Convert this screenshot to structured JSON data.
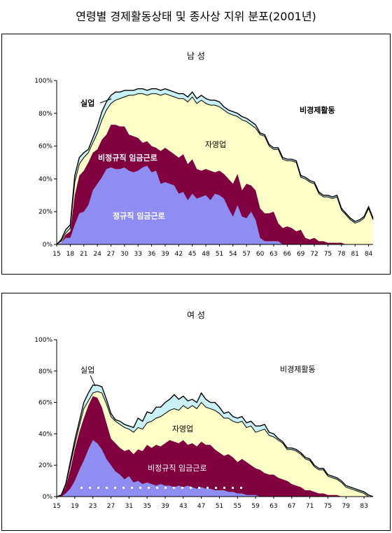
{
  "title": "연령별 경제활동상태 및 종사상 지위 분포(2001년)",
  "colors": {
    "regular": "#8e8ef2",
    "nonregular": "#800040",
    "self": "#ffffc8",
    "unemployed": "#c8f0f5",
    "line": "#000000"
  },
  "chart_data": [
    {
      "type": "area",
      "title": "남 성",
      "ylim": [
        0,
        100
      ],
      "yticks": [
        "0%",
        "20%",
        "40%",
        "60%",
        "80%",
        "100%"
      ],
      "x_tick_labels": [
        "15",
        "18",
        "21",
        "24",
        "27",
        "30",
        "33",
        "36",
        "39",
        "42",
        "45",
        "48",
        "51",
        "54",
        "57",
        "60",
        "63",
        "66",
        "69",
        "72",
        "75",
        "78",
        "81",
        "84"
      ],
      "x": [
        15,
        16,
        17,
        18,
        19,
        20,
        21,
        22,
        23,
        24,
        25,
        26,
        27,
        28,
        29,
        30,
        31,
        32,
        33,
        34,
        35,
        36,
        37,
        38,
        39,
        40,
        41,
        42,
        43,
        44,
        45,
        46,
        47,
        48,
        49,
        50,
        51,
        52,
        53,
        54,
        55,
        56,
        57,
        58,
        59,
        60,
        61,
        62,
        63,
        64,
        65,
        66,
        67,
        68,
        69,
        70,
        71,
        72,
        73,
        74,
        75,
        76,
        77,
        78,
        79,
        80,
        81,
        82,
        83,
        84,
        85
      ],
      "labels": {
        "unemployed": "실업",
        "nonactive": "비경제활동",
        "self": "자영업",
        "nonregular": "비정규직 임금근로",
        "regular": "정규직 임금근로"
      },
      "series": [
        {
          "key": "regular",
          "name": "정규직 임금근로",
          "values": [
            0,
            1,
            4,
            4,
            12,
            19,
            20,
            24,
            33,
            37,
            41,
            46,
            47,
            46,
            46,
            47,
            45,
            44,
            45,
            47,
            48,
            44,
            45,
            37,
            38,
            37,
            36,
            31,
            32,
            27,
            31,
            28,
            29,
            30,
            27,
            31,
            30,
            28,
            22,
            17,
            24,
            17,
            16,
            20,
            15,
            4,
            2,
            2,
            2,
            2,
            0,
            0,
            0,
            0,
            0,
            0,
            0,
            0,
            0,
            0,
            0,
            0,
            0,
            0,
            0,
            0,
            0,
            0,
            0,
            0,
            0
          ]
        },
        {
          "key": "nonregular",
          "name": "비정규직 임금근로",
          "values": [
            0,
            1,
            6,
            8,
            30,
            42,
            45,
            50,
            56,
            58,
            64,
            67,
            73,
            73,
            72,
            72,
            67,
            66,
            65,
            62,
            63,
            60,
            59,
            57,
            59,
            57,
            55,
            53,
            55,
            49,
            52,
            46,
            45,
            46,
            45,
            44,
            45,
            43,
            40,
            37,
            43,
            33,
            37,
            36,
            33,
            22,
            19,
            19,
            20,
            13,
            10,
            11,
            10,
            8,
            9,
            4,
            3,
            4,
            2,
            2,
            1,
            1,
            1,
            1,
            0,
            0,
            0,
            0,
            0,
            0,
            0
          ]
        },
        {
          "key": "self",
          "name": "자영업",
          "values": [
            0,
            2,
            7,
            10,
            38,
            49,
            53,
            56,
            62,
            68,
            76,
            82,
            86,
            88,
            89,
            90,
            91,
            91,
            92,
            92,
            91,
            92,
            92,
            91,
            92,
            91,
            90,
            89,
            89,
            87,
            90,
            86,
            88,
            86,
            85,
            85,
            84,
            82,
            80,
            79,
            78,
            76,
            75,
            73,
            71,
            67,
            66,
            60,
            58,
            58,
            52,
            51,
            51,
            50,
            41,
            40,
            38,
            37,
            31,
            29,
            29,
            28,
            29,
            21,
            18,
            15,
            13,
            14,
            16,
            22,
            15
          ]
        },
        {
          "key": "unemployed",
          "name": "실업",
          "values": [
            0,
            3,
            9,
            12,
            42,
            53,
            56,
            58,
            65,
            72,
            81,
            87,
            91,
            93,
            93,
            94,
            94,
            94,
            95,
            95,
            94,
            95,
            95,
            94,
            95,
            94,
            93,
            92,
            92,
            90,
            93,
            89,
            91,
            89,
            88,
            88,
            87,
            84,
            82,
            81,
            80,
            78,
            77,
            75,
            73,
            68,
            67,
            61,
            59,
            59,
            53,
            52,
            52,
            51,
            42,
            41,
            39,
            38,
            32,
            30,
            30,
            29,
            30,
            22,
            19,
            16,
            14,
            15,
            17,
            23,
            16
          ]
        }
      ]
    },
    {
      "type": "area",
      "title": "여 성",
      "ylim": [
        0,
        100
      ],
      "yticks": [
        "0%",
        "20%",
        "40%",
        "60%",
        "80%",
        "100%"
      ],
      "x_tick_labels": [
        "15",
        "19",
        "23",
        "27",
        "31",
        "35",
        "39",
        "43",
        "47",
        "51",
        "55",
        "59",
        "63",
        "67",
        "71",
        "75",
        "79",
        "83"
      ],
      "x": [
        15,
        16,
        17,
        18,
        19,
        20,
        21,
        22,
        23,
        24,
        25,
        26,
        27,
        28,
        29,
        30,
        31,
        32,
        33,
        34,
        35,
        36,
        37,
        38,
        39,
        40,
        41,
        42,
        43,
        44,
        45,
        46,
        47,
        48,
        49,
        50,
        51,
        52,
        53,
        54,
        55,
        56,
        57,
        58,
        59,
        60,
        61,
        62,
        63,
        64,
        65,
        66,
        67,
        68,
        69,
        70,
        71,
        72,
        73,
        74,
        75,
        76,
        77,
        78,
        79,
        80,
        81,
        82,
        83,
        84,
        85
      ],
      "labels": {
        "unemployed": "실업",
        "nonactive": "비경제활동",
        "self": "자영업",
        "nonregular": "비정규직 임금근로"
      },
      "series": [
        {
          "key": "regular",
          "name": "정규직 임금근로",
          "values": [
            0,
            0,
            2,
            5,
            10,
            17,
            23,
            30,
            36,
            34,
            30,
            24,
            20,
            16,
            14,
            11,
            13,
            9,
            10,
            8,
            9,
            8,
            7,
            8,
            7,
            7,
            6,
            7,
            6,
            7,
            6,
            5,
            6,
            5,
            5,
            4,
            4,
            4,
            3,
            3,
            2,
            2,
            1,
            1,
            1,
            0,
            0,
            0,
            0,
            0,
            0,
            0,
            0,
            0,
            0,
            0,
            0,
            0,
            0,
            0,
            0,
            0,
            0,
            0,
            0,
            0,
            0,
            0,
            0,
            0,
            0
          ]
        },
        {
          "key": "nonregular",
          "name": "비정규직 임금근로",
          "values": [
            0,
            1,
            6,
            17,
            30,
            41,
            50,
            58,
            64,
            63,
            57,
            47,
            37,
            34,
            31,
            29,
            30,
            27,
            30,
            29,
            33,
            31,
            33,
            32,
            34,
            36,
            35,
            34,
            36,
            33,
            34,
            32,
            35,
            33,
            33,
            30,
            28,
            26,
            27,
            25,
            22,
            24,
            22,
            20,
            18,
            17,
            15,
            14,
            14,
            12,
            11,
            10,
            8,
            7,
            6,
            4,
            4,
            3,
            2,
            2,
            1,
            1,
            1,
            0,
            0,
            0,
            0,
            0,
            0,
            0,
            0
          ]
        },
        {
          "key": "self",
          "name": "자영업",
          "values": [
            0,
            1,
            7,
            20,
            33,
            45,
            56,
            61,
            66,
            67,
            66,
            59,
            51,
            48,
            46,
            44,
            43,
            41,
            44,
            43,
            47,
            48,
            50,
            51,
            53,
            55,
            56,
            55,
            58,
            56,
            58,
            56,
            60,
            57,
            56,
            55,
            53,
            50,
            50,
            48,
            47,
            48,
            44,
            45,
            41,
            42,
            43,
            39,
            38,
            36,
            34,
            30,
            30,
            29,
            27,
            24,
            23,
            19,
            17,
            17,
            13,
            12,
            11,
            9,
            6,
            5,
            4,
            3,
            2,
            0,
            0
          ]
        },
        {
          "key": "unemployed",
          "name": "실업",
          "values": [
            0,
            1,
            8,
            22,
            36,
            48,
            60,
            66,
            71,
            71,
            70,
            62,
            53,
            49,
            48,
            46,
            45,
            44,
            50,
            48,
            54,
            53,
            57,
            57,
            60,
            62,
            65,
            62,
            64,
            61,
            62,
            60,
            66,
            62,
            60,
            60,
            57,
            53,
            54,
            51,
            50,
            51,
            47,
            48,
            45,
            45,
            46,
            41,
            40,
            37,
            35,
            31,
            31,
            30,
            28,
            25,
            24,
            20,
            18,
            18,
            14,
            13,
            12,
            10,
            7,
            6,
            5,
            4,
            3,
            1,
            0
          ]
        }
      ]
    }
  ]
}
